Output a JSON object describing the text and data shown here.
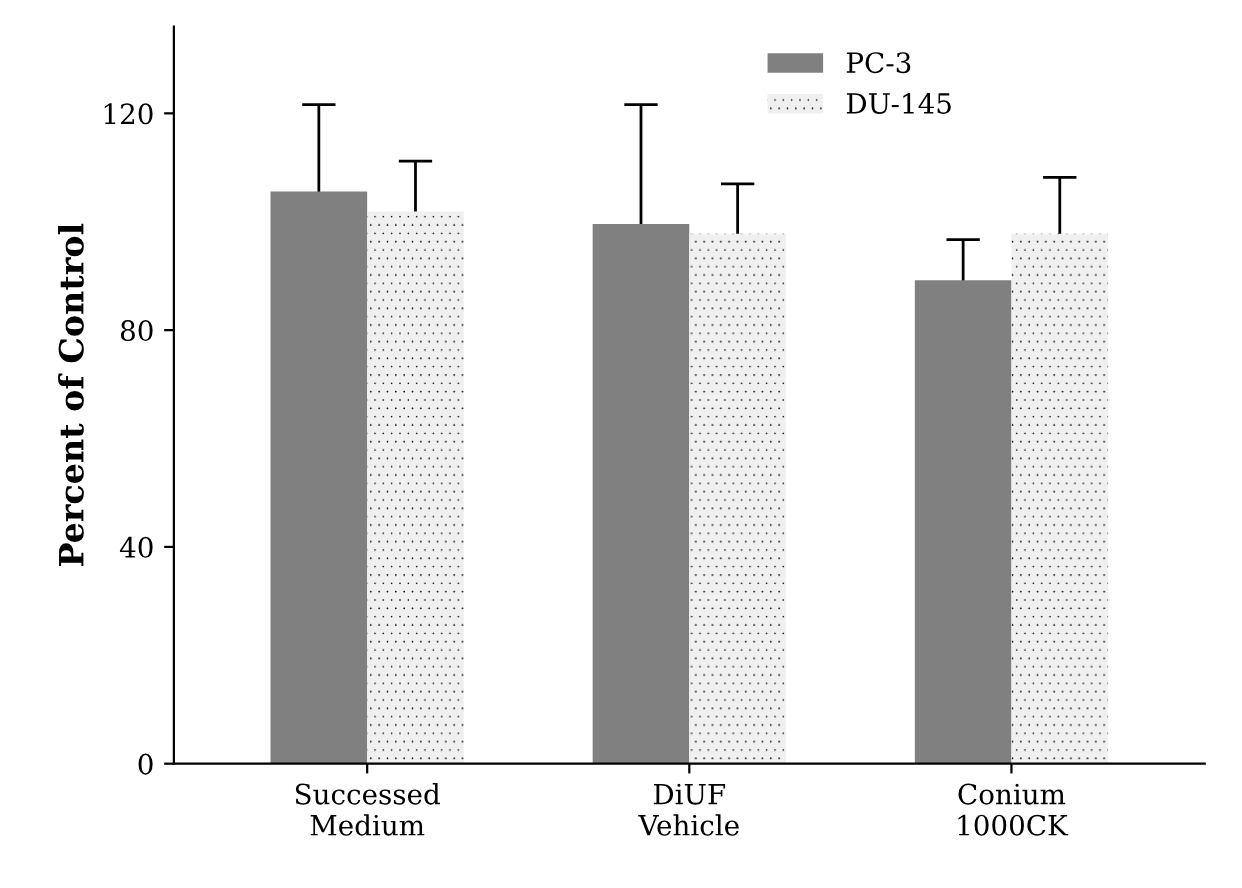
{
  "chart_data": {
    "type": "bar",
    "ylabel": "Percent of Control",
    "categories": [
      "Successed\nMedium",
      "DiUF\nVehicle",
      "Conium\n1000CK"
    ],
    "series": [
      {
        "name": "PC-3",
        "color": "#808080",
        "values": [
          105.6,
          99.6,
          89.2
        ],
        "errors": [
          16,
          22,
          7.5
        ]
      },
      {
        "name": "DU-145",
        "color": "#f0f0f0",
        "values": [
          101.9,
          97.8,
          97.8
        ],
        "errors": [
          9.3,
          9.2,
          10.4
        ]
      }
    ],
    "ylim": [
      0,
      136
    ],
    "yticks": [
      0,
      40,
      80,
      120
    ],
    "grid": false,
    "legend": "top right"
  }
}
